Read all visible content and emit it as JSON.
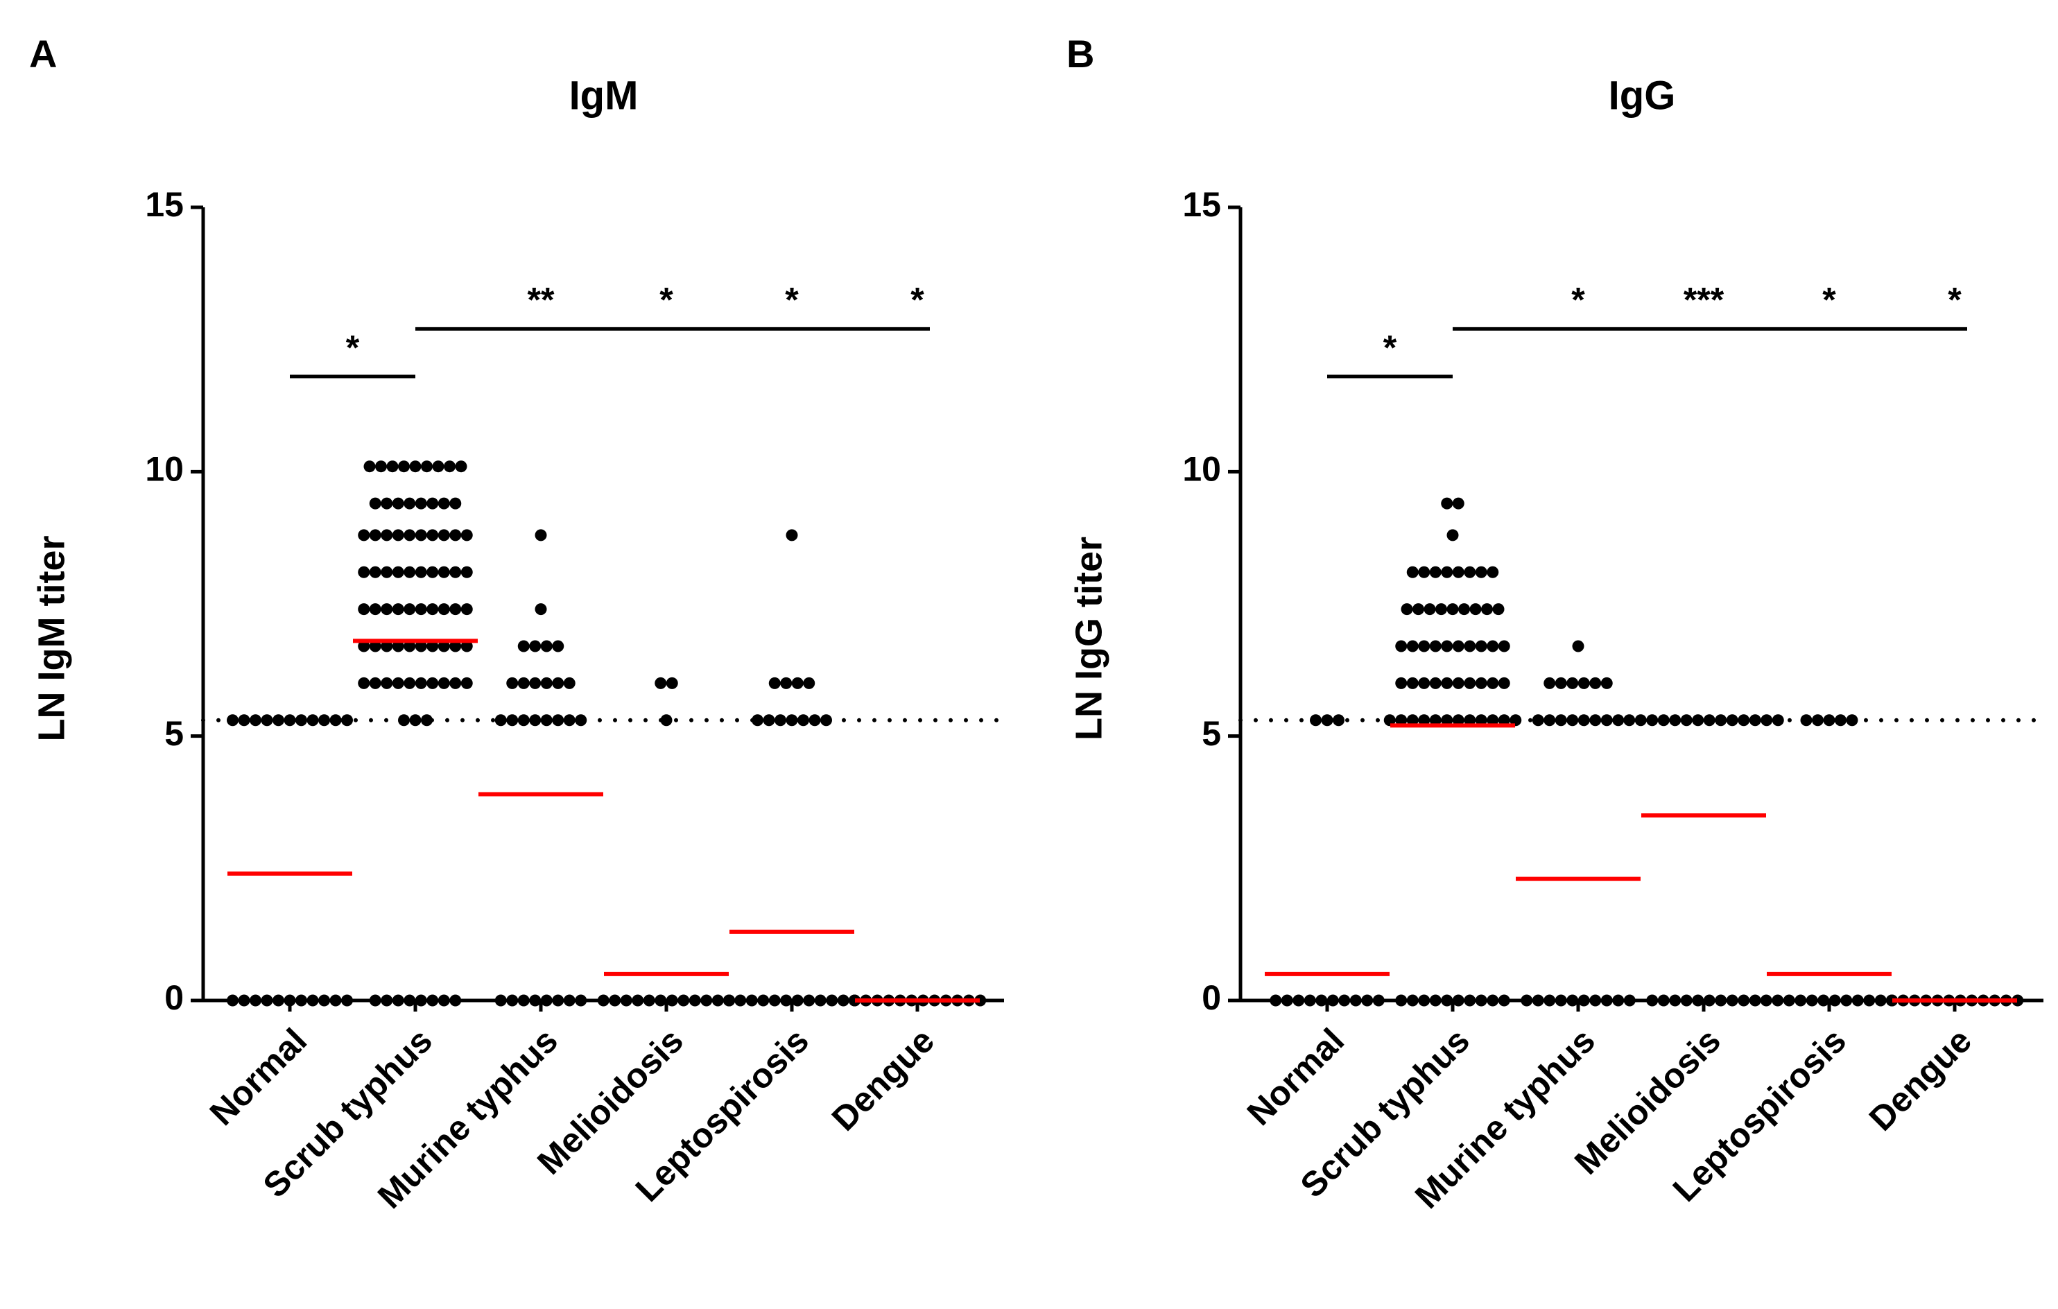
{
  "chart_data": [
    {
      "type": "dot",
      "panel": "A",
      "title": "IgM",
      "y_label": "LN IgM titer",
      "categories": [
        "Normal",
        "Scrub typhus",
        "Murine typhus",
        "Melioidosis",
        "Leptospirosis",
        "Dengue"
      ],
      "values": [
        [
          5.3,
          5.3,
          5.3,
          5.3,
          5.3,
          5.3,
          5.3,
          5.3,
          5.3,
          5.3,
          5.3,
          0,
          0,
          0,
          0,
          0,
          0,
          0,
          0,
          0,
          0,
          0
        ],
        [
          10.1,
          10.1,
          10.1,
          10.1,
          10.1,
          10.1,
          10.1,
          10.1,
          10.1,
          9.4,
          9.4,
          9.4,
          9.4,
          9.4,
          9.4,
          9.4,
          9.4,
          8.8,
          8.8,
          8.8,
          8.8,
          8.8,
          8.8,
          8.8,
          8.8,
          8.8,
          8.8,
          8.1,
          8.1,
          8.1,
          8.1,
          8.1,
          8.1,
          8.1,
          8.1,
          8.1,
          8.1,
          7.4,
          7.4,
          7.4,
          7.4,
          7.4,
          7.4,
          7.4,
          7.4,
          7.4,
          7.4,
          6.7,
          6.7,
          6.7,
          6.7,
          6.7,
          6.7,
          6.7,
          6.7,
          6.7,
          6.7,
          6.0,
          6.0,
          6.0,
          6.0,
          6.0,
          6.0,
          6.0,
          6.0,
          6.0,
          6.0,
          5.3,
          5.3,
          5.3,
          0,
          0,
          0,
          0,
          0,
          0,
          0,
          0
        ],
        [
          8.8,
          7.4,
          6.7,
          6.7,
          6.7,
          6.7,
          6.0,
          6.0,
          6.0,
          6.0,
          6.0,
          6.0,
          5.3,
          5.3,
          5.3,
          5.3,
          5.3,
          5.3,
          5.3,
          5.3,
          0,
          0,
          0,
          0,
          0,
          0,
          0,
          0
        ],
        [
          6.0,
          6.0,
          5.3,
          0,
          0,
          0,
          0,
          0,
          0,
          0,
          0,
          0,
          0,
          0,
          0
        ],
        [
          8.8,
          6.0,
          6.0,
          6.0,
          6.0,
          5.3,
          5.3,
          5.3,
          5.3,
          5.3,
          5.3,
          5.3,
          0,
          0,
          0,
          0,
          0,
          0,
          0,
          0,
          0,
          0,
          0,
          0
        ],
        [
          0,
          0,
          0,
          0,
          0,
          0,
          0,
          0,
          0,
          0,
          0,
          0
        ]
      ],
      "medians": [
        2.4,
        6.8,
        3.9,
        0.5,
        1.3,
        0
      ],
      "cutoff": 5.3,
      "ylim": [
        0,
        15
      ],
      "yticks": [
        0,
        5,
        10,
        15
      ],
      "dot_color": "#000000",
      "median_color": "#ff0000",
      "brackets": [
        {
          "start": "Normal",
          "end": "Scrub typhus",
          "y": 11.8,
          "labels": [
            {
              "label": "*"
            }
          ]
        },
        {
          "start": "Scrub typhus",
          "end": "Dengue",
          "y": 12.7,
          "labels": [
            {
              "category": "Murine typhus",
              "label": "**"
            },
            {
              "category": "Melioidosis",
              "label": "*"
            },
            {
              "category": "Leptospirosis",
              "label": "*"
            },
            {
              "category": "Dengue",
              "label": "*"
            }
          ]
        }
      ]
    },
    {
      "type": "dot",
      "panel": "B",
      "title": "IgG",
      "y_label": "LN IgG titer",
      "categories": [
        "Normal",
        "Scrub typhus",
        "Murine typhus",
        "Melioidosis",
        "Leptospirosis",
        "Dengue"
      ],
      "values": [
        [
          5.3,
          5.3,
          5.3,
          0,
          0,
          0,
          0,
          0,
          0,
          0,
          0,
          0,
          0
        ],
        [
          9.4,
          9.4,
          8.8,
          8.1,
          8.1,
          8.1,
          8.1,
          8.1,
          8.1,
          8.1,
          8.1,
          7.4,
          7.4,
          7.4,
          7.4,
          7.4,
          7.4,
          7.4,
          7.4,
          7.4,
          6.7,
          6.7,
          6.7,
          6.7,
          6.7,
          6.7,
          6.7,
          6.7,
          6.7,
          6.7,
          6.0,
          6.0,
          6.0,
          6.0,
          6.0,
          6.0,
          6.0,
          6.0,
          6.0,
          6.0,
          5.3,
          5.3,
          5.3,
          5.3,
          5.3,
          5.3,
          5.3,
          5.3,
          5.3,
          5.3,
          5.3,
          5.3,
          0,
          0,
          0,
          0,
          0,
          0,
          0,
          0,
          0,
          0
        ],
        [
          6.7,
          6.0,
          6.0,
          6.0,
          6.0,
          6.0,
          6.0,
          5.3,
          5.3,
          5.3,
          5.3,
          5.3,
          5.3,
          5.3,
          5.3,
          0,
          0,
          0,
          0,
          0,
          0,
          0,
          0,
          0,
          0
        ],
        [
          5.3,
          5.3,
          5.3,
          5.3,
          5.3,
          5.3,
          5.3,
          5.3,
          5.3,
          5.3,
          5.3,
          5.3,
          5.3,
          5.3,
          0,
          0,
          0,
          0,
          0,
          0,
          0,
          0,
          0,
          0
        ],
        [
          5.3,
          5.3,
          5.3,
          5.3,
          5.3,
          0,
          0,
          0,
          0,
          0,
          0,
          0,
          0,
          0,
          0,
          0,
          0
        ],
        [
          0,
          0,
          0,
          0,
          0,
          0,
          0,
          0,
          0,
          0,
          0,
          0
        ]
      ],
      "medians": [
        0.5,
        5.2,
        2.3,
        3.5,
        0.5,
        0
      ],
      "cutoff": 5.3,
      "ylim": [
        0,
        15
      ],
      "yticks": [
        0,
        5,
        10,
        15
      ],
      "dot_color": "#000000",
      "median_color": "#ff0000",
      "brackets": [
        {
          "start": "Normal",
          "end": "Scrub typhus",
          "y": 11.8,
          "labels": [
            {
              "label": "*"
            }
          ]
        },
        {
          "start": "Scrub typhus",
          "end": "Dengue",
          "y": 12.7,
          "labels": [
            {
              "category": "Murine typhus",
              "label": "*"
            },
            {
              "category": "Melioidosis",
              "label": "***"
            },
            {
              "category": "Leptospirosis",
              "label": "*"
            },
            {
              "category": "Dengue",
              "label": "*"
            }
          ]
        }
      ]
    }
  ]
}
